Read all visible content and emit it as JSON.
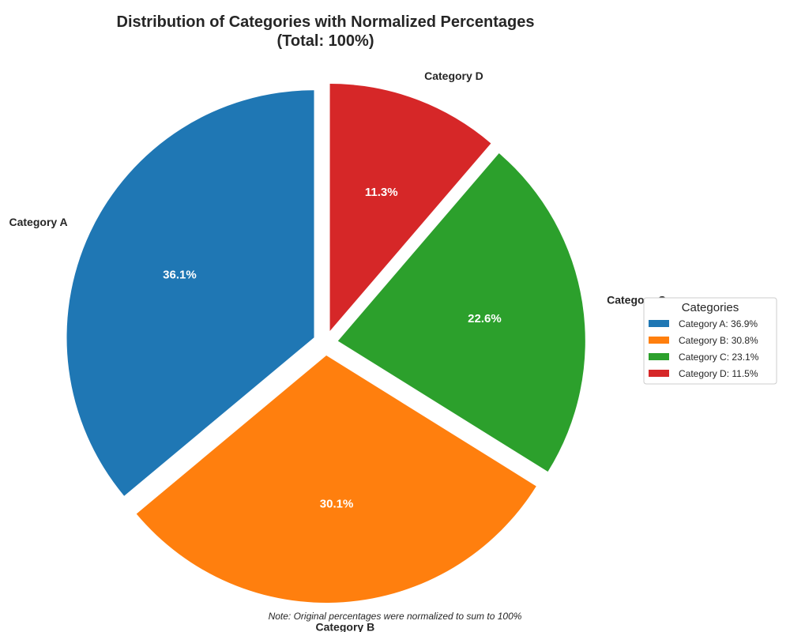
{
  "chart_data": {
    "type": "pie",
    "title": "Distribution of Categories with Normalized Percentages\n(Total: 100%)",
    "categories": [
      "Category A",
      "Category B",
      "Category C",
      "Category D"
    ],
    "values": [
      36.1,
      30.1,
      22.6,
      11.3
    ],
    "pct_labels": [
      "36.1%",
      "30.1%",
      "22.6%",
      "11.3%"
    ],
    "colors": [
      "#1f77b4",
      "#ff7f0e",
      "#2ca02c",
      "#d62728"
    ],
    "exploded": true,
    "start_angle_deg": 90,
    "direction": "counterclockwise",
    "legend": {
      "title": "Categories",
      "placement": "right",
      "entries": [
        "Category A: 36.9%",
        "Category B: 30.8%",
        "Category C: 23.1%",
        "Category D: 11.5%"
      ]
    },
    "note": "Note: Original percentages were normalized to sum to 100%"
  }
}
